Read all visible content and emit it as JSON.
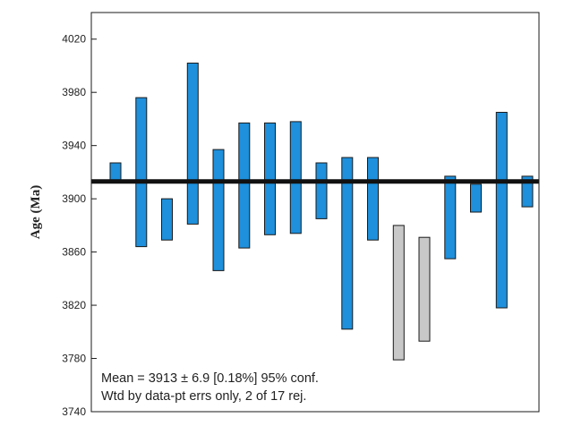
{
  "chart_data": {
    "type": "bar",
    "subtype": "weighted-mean error bars",
    "ylabel": "Age (Ma)",
    "ylim": [
      3740,
      4040
    ],
    "yticks": [
      3740,
      3780,
      3820,
      3860,
      3900,
      3940,
      3980,
      4020
    ],
    "mean": 3913,
    "bars": [
      {
        "low": 3912,
        "high": 3927,
        "status": "accepted"
      },
      {
        "low": 3864,
        "high": 3976,
        "status": "accepted"
      },
      {
        "low": 3869,
        "high": 3900,
        "status": "accepted"
      },
      {
        "low": 3881,
        "high": 4002,
        "status": "accepted"
      },
      {
        "low": 3846,
        "high": 3937,
        "status": "accepted"
      },
      {
        "low": 3863,
        "high": 3957,
        "status": "accepted"
      },
      {
        "low": 3873,
        "high": 3957,
        "status": "accepted"
      },
      {
        "low": 3874,
        "high": 3958,
        "status": "accepted"
      },
      {
        "low": 3885,
        "high": 3927,
        "status": "accepted"
      },
      {
        "low": 3802,
        "high": 3931,
        "status": "accepted"
      },
      {
        "low": 3869,
        "high": 3931,
        "status": "accepted"
      },
      {
        "low": 3779,
        "high": 3880,
        "status": "rejected"
      },
      {
        "low": 3793,
        "high": 3871,
        "status": "rejected"
      },
      {
        "low": 3855,
        "high": 3917,
        "status": "accepted"
      },
      {
        "low": 3890,
        "high": 3911,
        "status": "accepted"
      },
      {
        "low": 3818,
        "high": 3965,
        "status": "accepted"
      },
      {
        "low": 3894,
        "high": 3917,
        "status": "accepted"
      }
    ],
    "annotations": [
      "Mean = 3913 ± 6.9 [0.18%] 95% conf.",
      "Wtd by data-pt errs only, 2 of 17 rej."
    ],
    "colors": {
      "accepted": "#1e90dc",
      "rejected": "#c8c8c8",
      "mean_line": "#111111",
      "outline": "#1a1a1a"
    }
  }
}
